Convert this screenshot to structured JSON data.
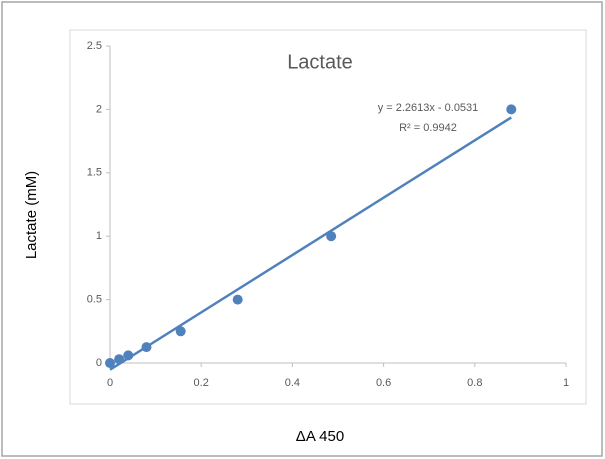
{
  "chart_data": {
    "type": "scatter",
    "title": "Lactate",
    "x_label": "ΔA 450",
    "y_label": "Lactate (mM)",
    "x": [
      0,
      0.02,
      0.04,
      0.08,
      0.155,
      0.28,
      0.485,
      0.88
    ],
    "values": [
      0,
      0.03,
      0.06,
      0.125,
      0.25,
      0.5,
      1.0,
      2.0
    ],
    "color": "#4f81bd",
    "xlim": [
      0,
      1
    ],
    "xticks": [
      0,
      0.2,
      0.4,
      0.6,
      0.8,
      1
    ],
    "ylim": [
      0,
      2.5
    ],
    "yticks": [
      0,
      0.5,
      1,
      1.5,
      2,
      2.5
    ],
    "grid": false,
    "trendline": {
      "equation": "y = 2.2613x - 0.0531",
      "r_squared": "R² = 0.9942",
      "slope": 2.2613,
      "intercept": -0.0531
    }
  }
}
